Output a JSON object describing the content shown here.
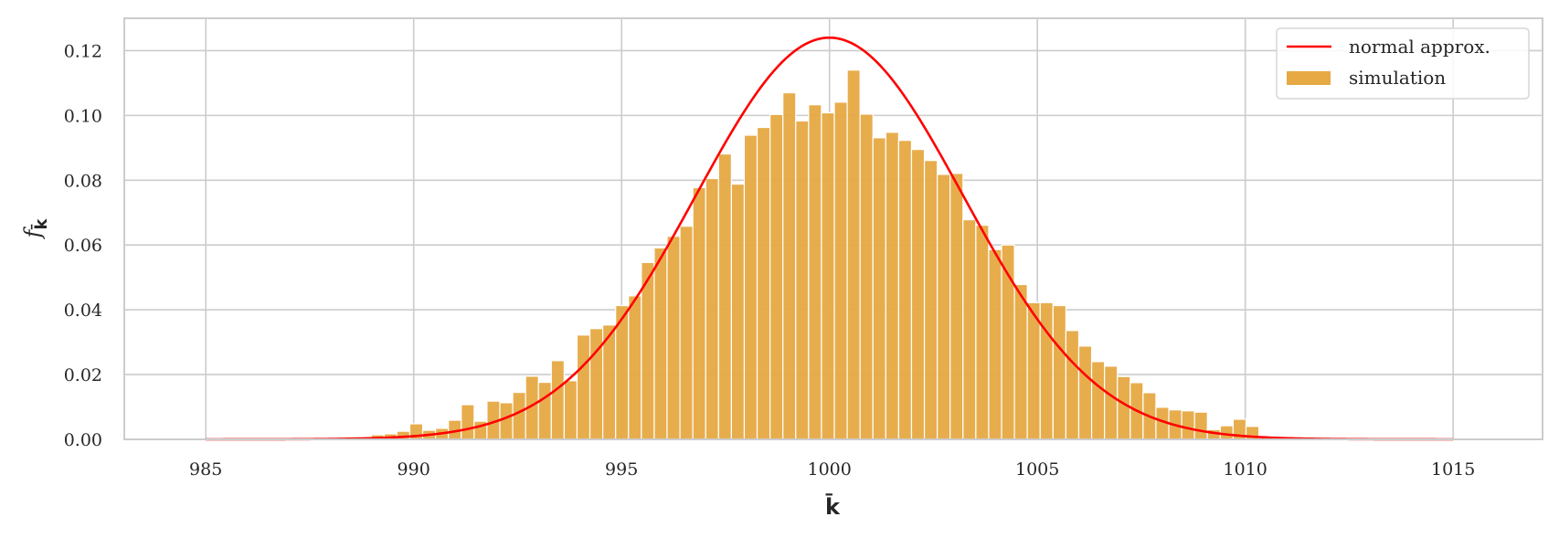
{
  "chart_data": {
    "type": "bar",
    "xlabel": "k̄",
    "ylabel": "f",
    "ylabel_subscript": "k̄",
    "xlim": [
      983.04,
      1017.15
    ],
    "ylim": [
      0,
      0.13
    ],
    "xticks": [
      985,
      990,
      995,
      1000,
      1005,
      1010,
      1015
    ],
    "xtick_labels": [
      "985",
      "990",
      "995",
      "1000",
      "1005",
      "1010",
      "1015"
    ],
    "yticks": [
      0,
      0.02,
      0.04,
      0.06,
      0.08,
      0.1,
      0.12
    ],
    "ytick_labels": [
      "0.00",
      "0.02",
      "0.04",
      "0.06",
      "0.08",
      "0.10",
      "0.12"
    ],
    "grid": true,
    "legend": {
      "position": "top-right",
      "entries": [
        "normal approx.",
        "simulation"
      ]
    },
    "series": [
      {
        "name": "simulation",
        "type": "histogram",
        "color": "#e6a943",
        "bin_start": 988.36,
        "bin_width": 0.3094,
        "values": [
          0.0008,
          0.0007,
          0.0014,
          0.0017,
          0.0025,
          0.0048,
          0.0028,
          0.0034,
          0.0059,
          0.0107,
          0.0056,
          0.0118,
          0.0113,
          0.0145,
          0.0195,
          0.0176,
          0.0243,
          0.0181,
          0.0322,
          0.0342,
          0.0353,
          0.0413,
          0.0443,
          0.0546,
          0.0591,
          0.0627,
          0.0658,
          0.0777,
          0.0805,
          0.0881,
          0.0788,
          0.0939,
          0.0963,
          0.1003,
          0.107,
          0.0983,
          0.1033,
          0.1008,
          0.1041,
          0.114,
          0.1004,
          0.0931,
          0.0948,
          0.0923,
          0.0895,
          0.0861,
          0.0818,
          0.0821,
          0.0678,
          0.0661,
          0.0586,
          0.06,
          0.0478,
          0.0422,
          0.0422,
          0.0413,
          0.0336,
          0.0288,
          0.024,
          0.0226,
          0.0194,
          0.0175,
          0.0144,
          0.0099,
          0.0091,
          0.0088,
          0.0084,
          0.003,
          0.0042,
          0.0062,
          0.004
        ]
      },
      {
        "name": "normal approx.",
        "type": "line",
        "color": "#ff0000",
        "mean": 1000,
        "std": 3.217,
        "x_range": [
          985,
          1015
        ]
      }
    ]
  }
}
